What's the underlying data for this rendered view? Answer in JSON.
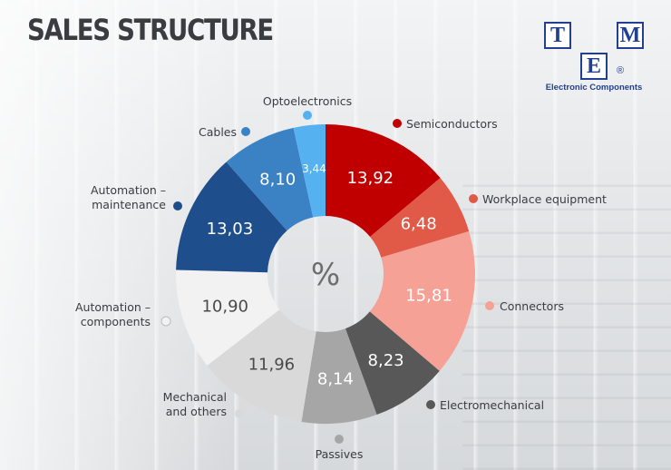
{
  "title": "SALES STRUCTURE",
  "logo": {
    "letters": [
      "T",
      "M",
      "E"
    ],
    "registered": "®",
    "tagline": "Electronic Components",
    "color": "#233f8f"
  },
  "chart_data": {
    "type": "pie",
    "center_label": "%",
    "slices": [
      {
        "label": "Semiconductors",
        "value": 13.92,
        "display": "13,92",
        "color": "#c00000"
      },
      {
        "label": "Workplace equipment",
        "value": 6.48,
        "display": "6,48",
        "color": "#e05a47"
      },
      {
        "label": "Connectors",
        "value": 15.81,
        "display": "15,81",
        "color": "#f6a195"
      },
      {
        "label": "Electromechanical",
        "value": 8.23,
        "display": "8,23",
        "color": "#585858"
      },
      {
        "label": "Passives",
        "value": 8.14,
        "display": "8,14",
        "color": "#a6a6a6"
      },
      {
        "label": "Mechanical\nand others",
        "value": 11.96,
        "display": "11,96",
        "color": "#d9d9d9"
      },
      {
        "label": "Automation –\ncomponents",
        "value": 10.9,
        "display": "10,90",
        "color": "#f2f2f2"
      },
      {
        "label": "Automation –\nmaintenance",
        "value": 13.03,
        "display": "13,03",
        "color": "#1f4e8c"
      },
      {
        "label": "Cables",
        "value": 8.1,
        "display": "8,10",
        "color": "#3b82c4"
      },
      {
        "label": "Optoelectronics",
        "value": 3.44,
        "display": "3,44",
        "color": "#56b1f0"
      }
    ]
  }
}
